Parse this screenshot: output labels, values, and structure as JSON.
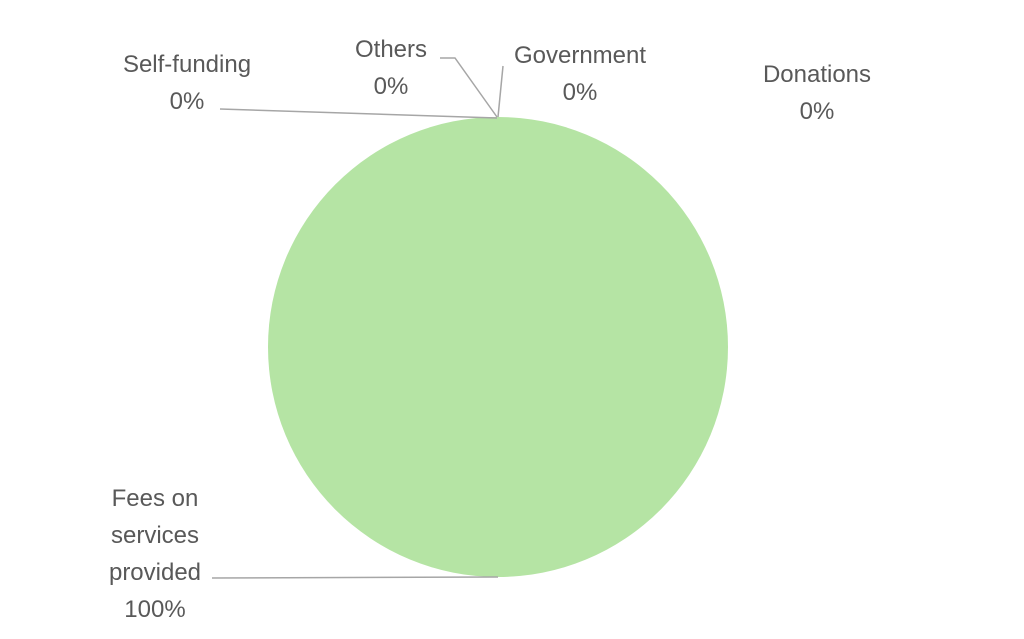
{
  "chart_data": {
    "type": "pie",
    "title": "",
    "slices": [
      {
        "label": "Fees on services provided",
        "label_lines": [
          "Fees on",
          "services",
          "provided"
        ],
        "value": 100,
        "value_label": "100%",
        "color": "#b5e4a4"
      },
      {
        "label": "Self-funding",
        "label_lines": [
          "Self-funding"
        ],
        "value": 0,
        "value_label": "0%",
        "color": "#b5e4a4"
      },
      {
        "label": "Others",
        "label_lines": [
          "Others"
        ],
        "value": 0,
        "value_label": "0%",
        "color": "#b5e4a4"
      },
      {
        "label": "Government",
        "label_lines": [
          "Government"
        ],
        "value": 0,
        "value_label": "0%",
        "color": "#b5e4a4"
      },
      {
        "label": "Donations",
        "label_lines": [
          "Donations"
        ],
        "value": 0,
        "value_label": "0%",
        "color": "#b5e4a4"
      }
    ],
    "legend": "none",
    "leader_lines": true
  }
}
